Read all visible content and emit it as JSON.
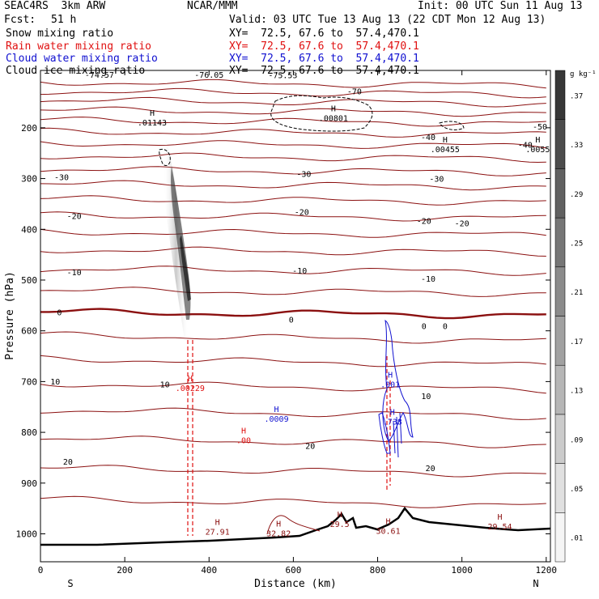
{
  "header": {
    "model": "SEAC4RS  3km ARW",
    "org": "NCAR/MMM",
    "init": "Init: 00 UTC Sun 11 Aug 13",
    "fcst_label": "Fcst:",
    "fcst_value": "51 h",
    "valid": "Valid: 03 UTC Tue 13 Aug 13 (22 CDT Mon 12 Aug 13)",
    "fields": [
      {
        "name": "Snow mixing ratio",
        "xy": "XY=  72.5, 67.6 to  57.4,470.1",
        "color": "#000000"
      },
      {
        "name": "Rain water mixing ratio",
        "xy": "XY=  72.5, 67.6 to  57.4,470.1",
        "color": "#e01010"
      },
      {
        "name": "Cloud water mixing ratio",
        "xy": "XY=  72.5, 67.6 to  57.4,470.1",
        "color": "#1010d0"
      },
      {
        "name": "Cloud ice mixing ratio",
        "xy": "XY=  72.5, 67.6 to  57.4,470.1",
        "color": "#000000"
      }
    ]
  },
  "chart_data": {
    "type": "contour_cross_section",
    "xlabel": "Distance (km)",
    "ylabel": "Pressure (hPa)",
    "xlim": [
      0,
      1210
    ],
    "ylim": [
      1055,
      87
    ],
    "x_ticks": [
      0,
      200,
      400,
      600,
      800,
      1000,
      1200
    ],
    "y_ticks": [
      200,
      300,
      400,
      500,
      600,
      700,
      800,
      900,
      1000
    ],
    "x_end_labels": {
      "left": "S",
      "right": "N"
    },
    "colorbar": {
      "unit": "g kg⁻¹",
      "levels": [
        ".01",
        ".05",
        ".09",
        ".13",
        ".17",
        ".21",
        ".25",
        ".29",
        ".33",
        ".37"
      ]
    },
    "temperature_labels": [
      {
        "text": "-70",
        "x": 745,
        "p": 128
      },
      {
        "text": "-50",
        "x": 1185,
        "p": 197
      },
      {
        "text": "-40",
        "x": 1150,
        "p": 233
      },
      {
        "text": "-40",
        "x": 920,
        "p": 218
      },
      {
        "text": "-30",
        "x": 50,
        "p": 297
      },
      {
        "text": "-30",
        "x": 625,
        "p": 290
      },
      {
        "text": "-30",
        "x": 940,
        "p": 300
      },
      {
        "text": "-20",
        "x": 80,
        "p": 373
      },
      {
        "text": "-20",
        "x": 620,
        "p": 365
      },
      {
        "text": "-20",
        "x": 910,
        "p": 383
      },
      {
        "text": "-20",
        "x": 1000,
        "p": 388
      },
      {
        "text": "-10",
        "x": 80,
        "p": 484
      },
      {
        "text": "-10",
        "x": 615,
        "p": 481
      },
      {
        "text": "-10",
        "x": 920,
        "p": 497
      },
      {
        "text": "0",
        "x": 45,
        "p": 563
      },
      {
        "text": "0",
        "x": 595,
        "p": 577
      },
      {
        "text": "0",
        "x": 910,
        "p": 590
      },
      {
        "text": "0",
        "x": 960,
        "p": 590
      },
      {
        "text": "10",
        "x": 35,
        "p": 699
      },
      {
        "text": "10",
        "x": 295,
        "p": 705
      },
      {
        "text": "10",
        "x": 915,
        "p": 728
      },
      {
        "text": "20",
        "x": 65,
        "p": 857
      },
      {
        "text": "20",
        "x": 640,
        "p": 826
      },
      {
        "text": "20",
        "x": 925,
        "p": 870
      }
    ],
    "top_labels": [
      {
        "text": "-74.57",
        "x": 140,
        "p": 95
      },
      {
        "text": "-76.05",
        "x": 400,
        "p": 95
      },
      {
        "text": "-75.53",
        "x": 575,
        "p": 96
      }
    ],
    "highs": [
      {
        "value": ".01143",
        "x": 265,
        "p": 189,
        "color": "#000000"
      },
      {
        "value": ".00801",
        "x": 695,
        "p": 180,
        "color": "#000000"
      },
      {
        "value": ".00455",
        "x": 960,
        "p": 242,
        "color": "#000000"
      },
      {
        "value": ".0055",
        "x": 1180,
        "p": 242,
        "color": "#000000"
      },
      {
        "value": ".00229",
        "x": 355,
        "p": 712,
        "color": "#e01010"
      },
      {
        "value": ".00",
        "x": 482,
        "p": 815,
        "color": "#e01010"
      },
      {
        "value": ".0009",
        "x": 560,
        "p": 773,
        "color": "#1010d0"
      },
      {
        "value": ".001",
        "x": 830,
        "p": 705,
        "color": "#1010d0"
      },
      {
        "value": ".738",
        "x": 835,
        "p": 778,
        "color": "#1010d0"
      },
      {
        "value": "27.91",
        "x": 420,
        "p": 995,
        "color": "#8b1010"
      },
      {
        "value": "32.82",
        "x": 565,
        "p": 998,
        "color": "#8b1010"
      },
      {
        "value": "29.5",
        "x": 710,
        "p": 980,
        "color": "#8b1010"
      },
      {
        "value": "30.61",
        "x": 825,
        "p": 994,
        "color": "#8b1010"
      },
      {
        "value": "29.54",
        "x": 1090,
        "p": 985,
        "color": "#8b1010"
      }
    ]
  }
}
